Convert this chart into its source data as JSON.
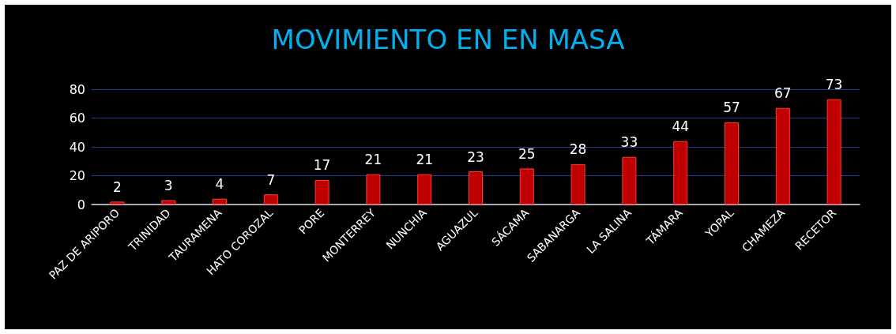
{
  "chart_data": {
    "type": "bar",
    "title": "MOVIMIENTO EN EN MASA",
    "categories": [
      "PAZ DE ARIPORO",
      "TRINIDAD",
      "TAURAMENA",
      "HATO COROZAL",
      "PORE",
      "MONTERREY",
      "NUNCHIA",
      "AGUAZUL",
      "SÁCAMA",
      "SABANARGA",
      "LA SALINA",
      "TÁMARA",
      "YOPAL",
      "CHAMEZA",
      "RECETOR"
    ],
    "values": [
      2,
      3,
      4,
      7,
      17,
      21,
      21,
      23,
      25,
      28,
      33,
      44,
      57,
      67,
      73
    ],
    "color": "#c00000",
    "ylim": [
      0,
      80
    ],
    "yticks": [
      0,
      20,
      40,
      60,
      80
    ],
    "grid": "y",
    "data_labels": true
  }
}
